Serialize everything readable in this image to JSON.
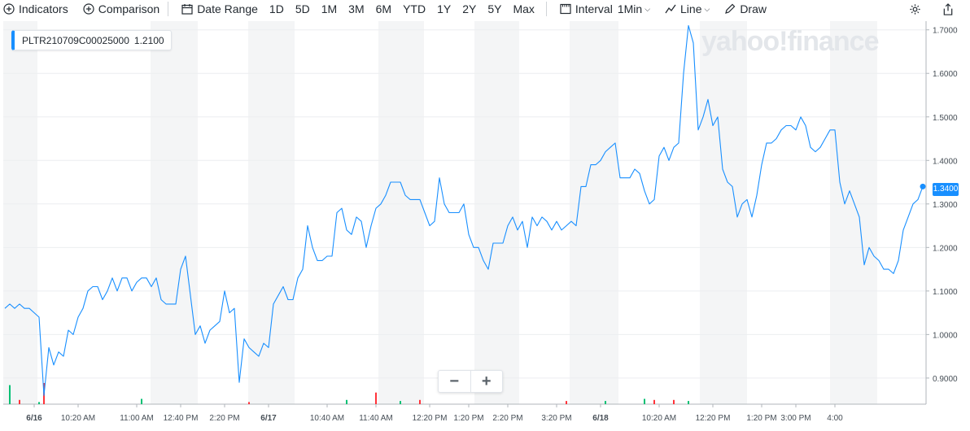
{
  "toolbar": {
    "indicators": "Indicators",
    "comparison": "Comparison",
    "date_range": "Date Range",
    "ranges": [
      "1D",
      "5D",
      "1M",
      "3M",
      "6M",
      "YTD",
      "1Y",
      "2Y",
      "5Y",
      "Max"
    ],
    "interval_label": "Interval",
    "interval_value": "1Min",
    "chart_type": "Line",
    "draw": "Draw"
  },
  "legend": {
    "symbol": "PLTR210709C00025000",
    "value": "1.2100"
  },
  "watermark": "yahoo!finance",
  "last_price": "1.3400",
  "zoom": {
    "minus": "−",
    "plus": "+"
  },
  "colors": {
    "line": "#188fff",
    "up_volume": "#00c073",
    "down_volume": "#ff333a",
    "band": "#f4f5f6"
  },
  "chart_data": {
    "type": "line",
    "title": "",
    "xlabel": "",
    "ylabel": "",
    "ylim": [
      0.84,
      1.72
    ],
    "y_ticks": [
      "1.7000",
      "1.6000",
      "1.5000",
      "1.4000",
      "1.3000",
      "1.2000",
      "1.1000",
      "1.0000",
      "0.9000"
    ],
    "y_tick_values": [
      1.7,
      1.6,
      1.5,
      1.4,
      1.3,
      1.2,
      1.1,
      1.0,
      0.9
    ],
    "x_tick_labels": [
      {
        "idx": 6,
        "label": "6/16",
        "bold": true
      },
      {
        "idx": 15,
        "label": "10:20 AM"
      },
      {
        "idx": 27,
        "label": "11:00 AM"
      },
      {
        "idx": 36,
        "label": "12:40 PM"
      },
      {
        "idx": 45,
        "label": "2:20 PM"
      },
      {
        "idx": 54,
        "label": "6/17",
        "bold": true
      },
      {
        "idx": 66,
        "label": "10:40 AM"
      },
      {
        "idx": 76,
        "label": "11:40 AM"
      },
      {
        "idx": 87,
        "label": "12:20 PM"
      },
      {
        "idx": 95,
        "label": "1:20 PM"
      },
      {
        "idx": 103,
        "label": "2:20 PM"
      },
      {
        "idx": 113,
        "label": "3:20 PM"
      },
      {
        "idx": 122,
        "label": "6/18",
        "bold": true
      },
      {
        "idx": 134,
        "label": "10:20 AM"
      },
      {
        "idx": 145,
        "label": "12:20 PM"
      },
      {
        "idx": 155,
        "label": "1:20 PM"
      },
      {
        "idx": 162,
        "label": "3:00 PM"
      },
      {
        "idx": 170,
        "label": "4:00"
      }
    ],
    "series": [
      {
        "values": [
          1.06,
          1.07,
          1.06,
          1.07,
          1.06,
          1.06,
          1.05,
          1.04,
          0.86,
          0.97,
          0.93,
          0.96,
          0.95,
          1.01,
          1.0,
          1.04,
          1.06,
          1.1,
          1.11,
          1.11,
          1.08,
          1.1,
          1.13,
          1.1,
          1.13,
          1.13,
          1.1,
          1.12,
          1.13,
          1.13,
          1.11,
          1.13,
          1.08,
          1.07,
          1.07,
          1.07,
          1.15,
          1.18,
          1.09,
          1.0,
          1.02,
          0.98,
          1.01,
          1.02,
          1.03,
          1.1,
          1.05,
          1.06,
          0.89,
          0.99,
          0.97,
          0.96,
          0.95,
          0.98,
          0.97,
          1.07,
          1.09,
          1.11,
          1.08,
          1.08,
          1.13,
          1.15,
          1.25,
          1.2,
          1.17,
          1.17,
          1.18,
          1.18,
          1.28,
          1.29,
          1.24,
          1.23,
          1.27,
          1.26,
          1.2,
          1.25,
          1.29,
          1.3,
          1.32,
          1.35,
          1.35,
          1.35,
          1.32,
          1.31,
          1.31,
          1.31,
          1.28,
          1.25,
          1.26,
          1.36,
          1.3,
          1.28,
          1.28,
          1.28,
          1.3,
          1.23,
          1.2,
          1.2,
          1.17,
          1.15,
          1.21,
          1.21,
          1.21,
          1.25,
          1.27,
          1.24,
          1.26,
          1.2,
          1.27,
          1.25,
          1.27,
          1.26,
          1.24,
          1.26,
          1.24,
          1.25,
          1.26,
          1.25,
          1.34,
          1.34,
          1.39,
          1.39,
          1.4,
          1.42,
          1.43,
          1.44,
          1.36,
          1.36,
          1.36,
          1.38,
          1.37,
          1.33,
          1.3,
          1.31,
          1.41,
          1.43,
          1.4,
          1.43,
          1.44,
          1.6,
          1.71,
          1.67,
          1.47,
          1.5,
          1.54,
          1.48,
          1.5,
          1.38,
          1.35,
          1.34,
          1.27,
          1.3,
          1.31,
          1.27,
          1.32,
          1.39,
          1.44,
          1.44,
          1.45,
          1.47,
          1.48,
          1.48,
          1.47,
          1.5,
          1.48,
          1.43,
          1.42,
          1.43,
          1.45,
          1.47,
          1.47,
          1.35,
          1.3,
          1.33,
          1.3,
          1.27,
          1.16,
          1.2,
          1.18,
          1.17,
          1.15,
          1.15,
          1.14,
          1.17,
          1.24,
          1.27,
          1.3,
          1.31,
          1.34
        ]
      }
    ],
    "volume": [
      {
        "idx": 1,
        "v": 0.9,
        "up": true
      },
      {
        "idx": 3,
        "v": 0.2,
        "up": false
      },
      {
        "idx": 7,
        "v": 0.1,
        "up": true
      },
      {
        "idx": 8,
        "v": 1.0,
        "up": false
      },
      {
        "idx": 28,
        "v": 0.25,
        "up": true
      },
      {
        "idx": 50,
        "v": 0.1,
        "up": false
      },
      {
        "idx": 70,
        "v": 0.2,
        "up": true
      },
      {
        "idx": 76,
        "v": 0.55,
        "up": false
      },
      {
        "idx": 81,
        "v": 0.15,
        "up": true
      },
      {
        "idx": 85,
        "v": 0.2,
        "up": false
      },
      {
        "idx": 115,
        "v": 0.15,
        "up": false
      },
      {
        "idx": 123,
        "v": 0.15,
        "up": true
      },
      {
        "idx": 131,
        "v": 0.25,
        "up": true
      },
      {
        "idx": 133,
        "v": 0.2,
        "up": false
      },
      {
        "idx": 137,
        "v": 0.2,
        "up": false
      },
      {
        "idx": 140,
        "v": 0.15,
        "up": true
      }
    ]
  }
}
